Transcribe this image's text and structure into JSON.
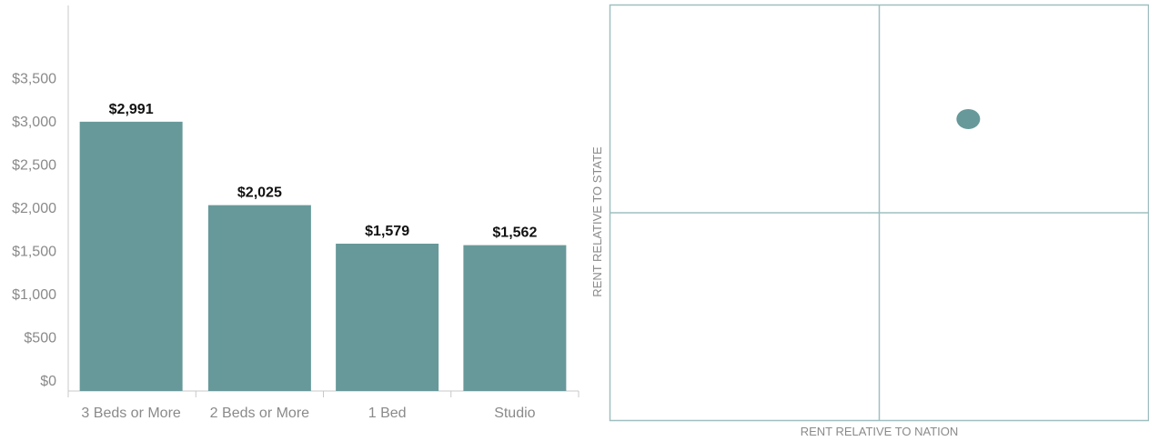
{
  "colors": {
    "bar": "#67999a",
    "dot": "#67999a",
    "axis": "#c8c8c8",
    "quadrant_line": "#9fbfc0"
  },
  "chart_data": [
    {
      "type": "bar",
      "categories": [
        "3 Beds or More",
        "2 Beds or More",
        "1 Bed",
        "Studio"
      ],
      "values": [
        2991,
        2025,
        1579,
        1562
      ],
      "value_labels": [
        "$2,991",
        "$2,025",
        "$1,579",
        "$1,562"
      ],
      "yticks": [
        0,
        500,
        1000,
        1500,
        2000,
        2500,
        3000,
        3500
      ],
      "ytick_labels": [
        "$0",
        "$500",
        "$1,000",
        "$1,500",
        "$2,000",
        "$2,500",
        "$3,000",
        "$3,500"
      ],
      "ylim": [
        0,
        4000
      ],
      "title": "",
      "xlabel": "",
      "ylabel": ""
    },
    {
      "type": "scatter",
      "xlabel": "RENT RELATIVE TO NATION",
      "ylabel": "RENT RELATIVE TO STATE",
      "quadrant_lines": true,
      "points": [
        {
          "x": 0.33,
          "y": 0.45
        }
      ]
    }
  ]
}
